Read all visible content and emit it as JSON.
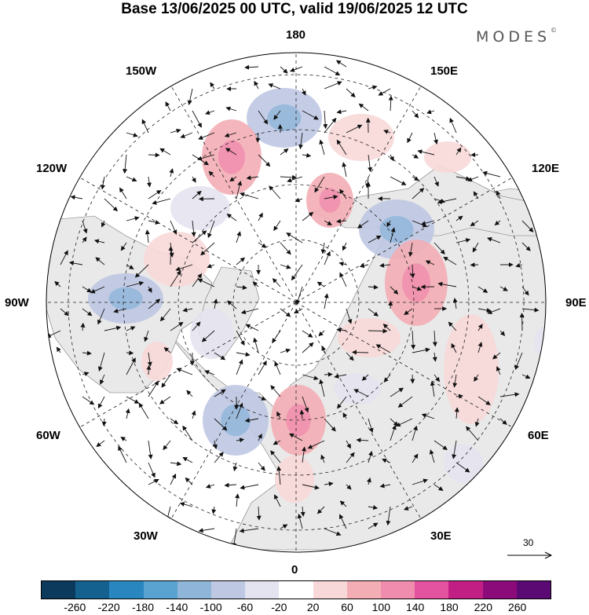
{
  "title": "Base 13/06/2025 00 UTC, valid 19/06/2025 12 UTC",
  "brand": "MODES",
  "brand_mark": "©",
  "longitude_labels": {
    "lon_180": "180",
    "lon_150e": "150E",
    "lon_120e": "120E",
    "lon_90e": "90E",
    "lon_60e": "60E",
    "lon_30e": "30E",
    "lon_0": "0",
    "lon_30w": "30W",
    "lon_60w": "60W",
    "lon_90w": "90W",
    "lon_120w": "120W",
    "lon_150w": "150W"
  },
  "reference_vector": {
    "label": "30"
  },
  "colorbar": {
    "colors": [
      "#0b3a5c",
      "#14608f",
      "#2a86bf",
      "#5aa3d0",
      "#8fb5d9",
      "#bfc8e3",
      "#e4e3f0",
      "#ffffff",
      "#f8d8d8",
      "#f3aeb5",
      "#f08cae",
      "#e4539f",
      "#c21f85",
      "#8c0b7a",
      "#5a0a72"
    ],
    "ticks": [
      "-260",
      "-220",
      "-180",
      "-140",
      "-100",
      "-60",
      "-20",
      "20",
      "60",
      "100",
      "140",
      "180",
      "220",
      "260"
    ]
  },
  "anomaly_blobs": [
    {
      "sign": "neg",
      "level": 2
    },
    {
      "sign": "neg",
      "level": 1
    },
    {
      "sign": "neg",
      "level": 2
    },
    {
      "sign": "neg",
      "level": 2
    },
    {
      "sign": "neg",
      "level": 1
    },
    {
      "sign": "neg",
      "level": 2
    },
    {
      "sign": "neg",
      "level": 1
    },
    {
      "sign": "neg",
      "level": 1
    },
    {
      "sign": "pos",
      "level": 1
    },
    {
      "sign": "pos",
      "level": 2
    },
    {
      "sign": "pos",
      "level": 1
    },
    {
      "sign": "pos",
      "level": 2
    },
    {
      "sign": "pos",
      "level": 2
    },
    {
      "sign": "pos",
      "level": 1
    },
    {
      "sign": "pos",
      "level": 2
    },
    {
      "sign": "pos",
      "level": 1
    },
    {
      "sign": "pos",
      "level": 1
    },
    {
      "sign": "pos",
      "level": 1
    },
    {
      "sign": "pos",
      "level": 1
    },
    {
      "sign": "neg",
      "level": 1
    }
  ]
}
